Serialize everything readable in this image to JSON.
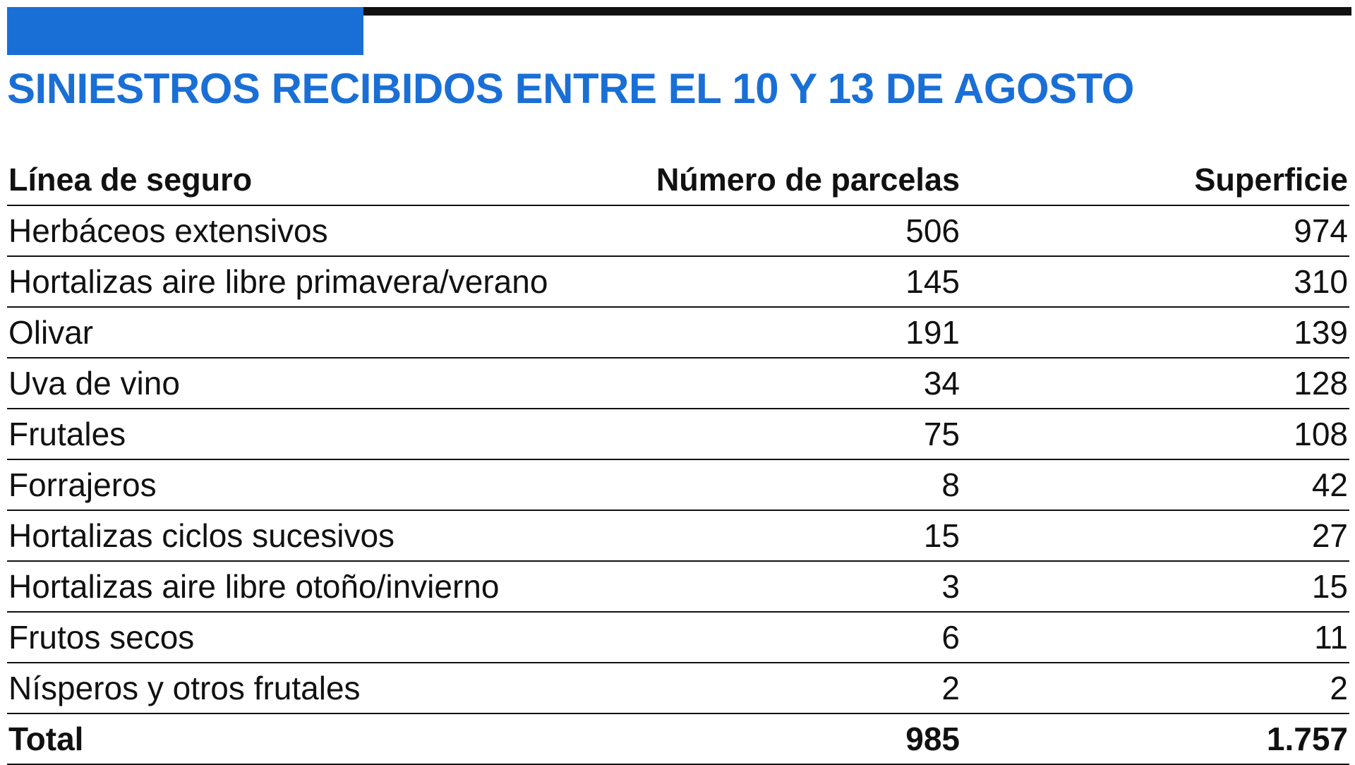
{
  "header": {
    "title": "SINIESTROS RECIBIDOS ENTRE EL 10 Y 13 DE AGOSTO",
    "accent_color": "#1a6fd6",
    "rule_color": "#111111"
  },
  "chart_data": {
    "type": "table",
    "title": "SINIESTROS RECIBIDOS ENTRE EL 10 Y 13 DE AGOSTO",
    "columns": [
      "Línea de seguro",
      "Número de parcelas",
      "Superficie"
    ],
    "rows": [
      {
        "label": "Herbáceos extensivos",
        "parcelas": "506",
        "superficie": "974"
      },
      {
        "label": "Hortalizas aire libre primavera/verano",
        "parcelas": "145",
        "superficie": "310"
      },
      {
        "label": "Olivar",
        "parcelas": "191",
        "superficie": "139"
      },
      {
        "label": "Uva de vino",
        "parcelas": "34",
        "superficie": "128"
      },
      {
        "label": "Frutales",
        "parcelas": "75",
        "superficie": "108"
      },
      {
        "label": "Forrajeros",
        "parcelas": "8",
        "superficie": "42"
      },
      {
        "label": "Hortalizas ciclos sucesivos",
        "parcelas": "15",
        "superficie": "27"
      },
      {
        "label": "Hortalizas aire libre otoño/invierno",
        "parcelas": "3",
        "superficie": "15"
      },
      {
        "label": "Frutos secos",
        "parcelas": "6",
        "superficie": "11"
      },
      {
        "label": "Nísperos y otros frutales",
        "parcelas": "2",
        "superficie": "2"
      }
    ],
    "total": {
      "label": "Total",
      "parcelas": "985",
      "superficie": "1.757"
    }
  }
}
